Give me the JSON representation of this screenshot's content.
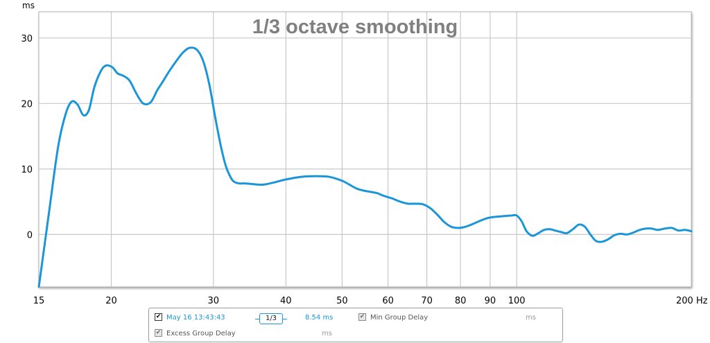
{
  "chart_data": {
    "type": "line",
    "title": "1/3 octave smoothing",
    "ylabel": "ms",
    "xlabel": "Hz",
    "x_scale": "log",
    "xlim": [
      15,
      200
    ],
    "ylim": [
      -8,
      34
    ],
    "y_ticks": [
      0,
      10,
      20,
      30
    ],
    "y_tick_labels": [
      "0",
      "10",
      "20",
      "30"
    ],
    "x_ticks": [
      15,
      20,
      30,
      40,
      50,
      60,
      70,
      80,
      90,
      100,
      200
    ],
    "x_tick_labels": [
      "15",
      "20",
      "30",
      "40",
      "50",
      "60",
      "70",
      "80",
      "90",
      "100",
      "200 Hz"
    ],
    "grid": true,
    "series": [
      {
        "name": "May 16 13:43:43",
        "color": "#1a96d8",
        "x": [
          15,
          15.6,
          16.2,
          16.7,
          17.1,
          17.5,
          17.9,
          18.3,
          18.7,
          19.2,
          19.6,
          20.1,
          20.5,
          21.0,
          21.5,
          22.1,
          22.7,
          23.4,
          24.0,
          24.6,
          25.2,
          25.9,
          26.6,
          27.3,
          28.1,
          28.8,
          29.5,
          30.2,
          30.9,
          31.5,
          32.0,
          32.5,
          33.2,
          34.0,
          35.0,
          36.5,
          38.0,
          40.0,
          42.5,
          45.0,
          47.5,
          50.0,
          51.5,
          53.0,
          54.5,
          56.0,
          57.5,
          59.0,
          61.0,
          63.0,
          65.0,
          67.0,
          69.0,
          71.0,
          73.0,
          75.0,
          77.0,
          79.0,
          81.0,
          83.5,
          86.0,
          89.0,
          92.0,
          95.0,
          98.0,
          100.0,
          102.0,
          104.0,
          106.5,
          109.0,
          111.5,
          114.0,
          116.5,
          119.0,
          122.0,
          125.0,
          128.0,
          131.0,
          134.0,
          137.0,
          140.5,
          144.0,
          147.5,
          151.0,
          155.0,
          159.0,
          163.0,
          167.0,
          171.0,
          175.0,
          180.0,
          185.0,
          190.0,
          195.0,
          200.0
        ],
        "values": [
          -8.0,
          3.0,
          13.5,
          18.5,
          20.3,
          19.8,
          18.2,
          19.0,
          22.5,
          25.0,
          25.8,
          25.5,
          24.6,
          24.2,
          23.5,
          21.5,
          20.0,
          20.2,
          22.0,
          23.5,
          25.0,
          26.5,
          27.8,
          28.5,
          28.2,
          26.5,
          23.0,
          18.0,
          13.5,
          10.5,
          9.0,
          8.1,
          7.8,
          7.8,
          7.7,
          7.6,
          7.9,
          8.4,
          8.8,
          8.9,
          8.8,
          8.2,
          7.6,
          7.0,
          6.7,
          6.5,
          6.3,
          5.9,
          5.5,
          5.0,
          4.7,
          4.7,
          4.6,
          4.0,
          3.0,
          1.9,
          1.2,
          1.0,
          1.1,
          1.5,
          2.0,
          2.5,
          2.7,
          2.8,
          2.9,
          2.9,
          2.0,
          0.5,
          -0.2,
          0.2,
          0.7,
          0.8,
          0.6,
          0.4,
          0.2,
          0.8,
          1.5,
          1.2,
          0.0,
          -1.0,
          -1.1,
          -0.7,
          -0.1,
          0.1,
          0.0,
          0.3,
          0.7,
          0.9,
          0.9,
          0.7,
          0.9,
          1.0,
          0.6,
          0.7,
          0.5
        ]
      }
    ]
  },
  "legend": {
    "entry1_checked": "✔",
    "entry1_label": "May 16 13:43:43",
    "smoothing_label": "1/3",
    "entry1_value": "8.54 ms",
    "entry2_checked": "✔",
    "entry2_label": "Min Group Delay",
    "entry2_value": "ms",
    "entry3_checked": "✔",
    "entry3_label": "Excess Group Delay",
    "entry3_value": "ms"
  },
  "colors": {
    "trace": "#1a96d8",
    "grid": "#c8c8c8",
    "title": "#808080"
  }
}
